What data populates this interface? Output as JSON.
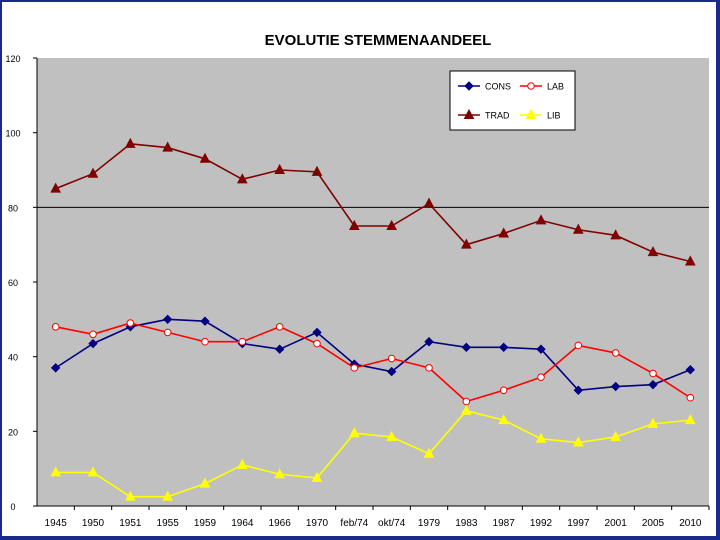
{
  "chart_data": {
    "type": "line",
    "title": "EVOLUTIE STEMMENAANDEEL",
    "xlabel": "",
    "ylabel": "",
    "ylim": [
      0,
      120
    ],
    "yticks": [
      0,
      20,
      40,
      60,
      80,
      100,
      120
    ],
    "reference_line": 80,
    "legend_position": "top-right",
    "categories": [
      "1945",
      "1950",
      "1951",
      "1955",
      "1959",
      "1964",
      "1966",
      "1970",
      "feb/74",
      "okt/74",
      "1979",
      "1983",
      "1987",
      "1992",
      "1997",
      "2001",
      "2005",
      "2010"
    ],
    "series": [
      {
        "name": "CONS",
        "color": "#000080",
        "marker": "diamond",
        "values": [
          37,
          43.5,
          48,
          50,
          49.5,
          43.5,
          42,
          46.5,
          38,
          36,
          44,
          42.5,
          42.5,
          42,
          31,
          32,
          32.5,
          36.5
        ]
      },
      {
        "name": "LAB",
        "color": "#ff0000",
        "marker": "circle",
        "values": [
          48,
          46,
          49,
          46.5,
          44,
          44,
          48,
          43.5,
          37,
          39.5,
          37,
          28,
          31,
          34.5,
          43,
          41,
          35.5,
          29
        ]
      },
      {
        "name": "TRAD",
        "color": "#800000",
        "marker": "triangle",
        "values": [
          85,
          89,
          97,
          96,
          93,
          87.5,
          90,
          89.5,
          75,
          75,
          81,
          70,
          73,
          76.5,
          74,
          72.5,
          68,
          65.5
        ]
      },
      {
        "name": "LIB",
        "color": "#ffff00",
        "marker": "triangle",
        "values": [
          9,
          9,
          2.5,
          2.5,
          6,
          11,
          8.5,
          7.5,
          19.5,
          18.5,
          14,
          25.5,
          23,
          18,
          17,
          18.5,
          22,
          23
        ]
      }
    ]
  }
}
